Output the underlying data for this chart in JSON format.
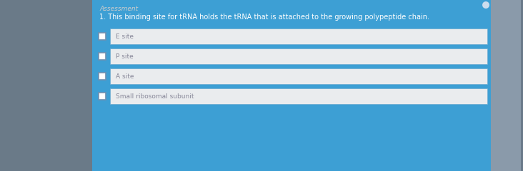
{
  "title": "Assessment",
  "question": "1. This binding site for tRNA holds the tRNA that is attached to the growing polypeptide chain.",
  "options": [
    "E site",
    "P site",
    "A site",
    "Small ribosomal subunit"
  ],
  "panel_bg": "#3d9fd4",
  "box_bg": "#eaecee",
  "box_border": "#6aaad0",
  "title_color": "#cccccc",
  "question_color": "#ffffff",
  "option_color": "#888899",
  "checkbox_color": "#7090b0",
  "outer_bg_left": "#6a7a8a",
  "outer_bg_right": "#8a9aaa",
  "title_fontsize": 6.5,
  "question_fontsize": 7.0,
  "option_fontsize": 6.5
}
